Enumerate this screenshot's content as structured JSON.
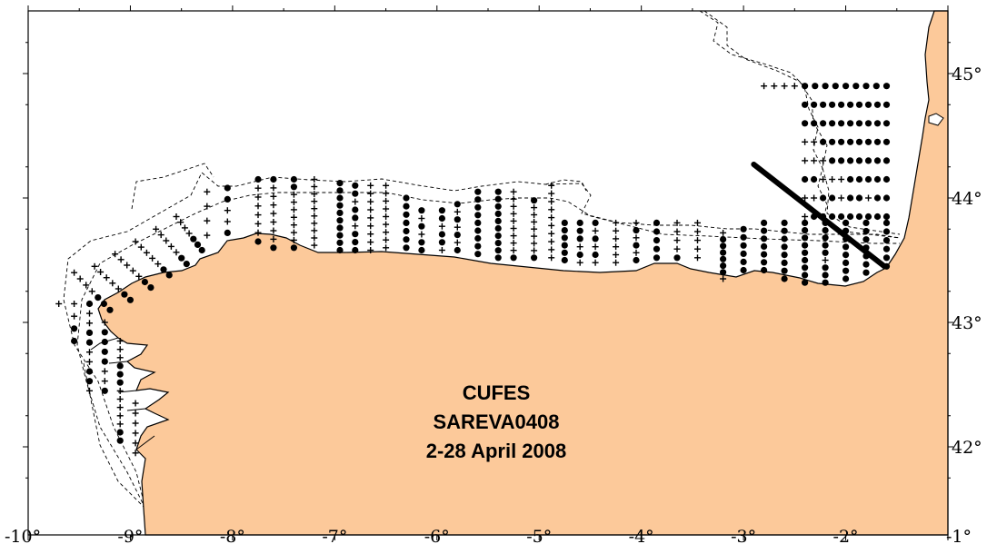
{
  "title": {
    "line1": "CUFES",
    "line2": "SAREVA0408",
    "line3": "2-28 April 2008"
  },
  "x_axis": {
    "ticks": [
      {
        "lon": -10,
        "label": "-10°"
      },
      {
        "lon": -9,
        "label": "-9°"
      },
      {
        "lon": -8,
        "label": "-8°"
      },
      {
        "lon": -7,
        "label": "-7°"
      },
      {
        "lon": -6,
        "label": "-6°"
      },
      {
        "lon": -5,
        "label": "-5°"
      },
      {
        "lon": -4,
        "label": "-4°"
      },
      {
        "lon": -3,
        "label": "-3°"
      },
      {
        "lon": -2,
        "label": "-2°"
      },
      {
        "lon": -1,
        "label": "-1°"
      }
    ]
  },
  "y_axis": {
    "ticks": [
      {
        "lat": 42,
        "label": "42°"
      },
      {
        "lat": 43,
        "label": "43°"
      },
      {
        "lat": 44,
        "label": "44°"
      },
      {
        "lat": 45,
        "label": "45°"
      }
    ]
  },
  "map_extent": {
    "lon": [
      -10,
      -1
    ],
    "lat": [
      41.5,
      45.5
    ]
  },
  "colors": {
    "land": "#fcc99a",
    "sea": "#ffffff",
    "ink": "#000000"
  },
  "symbols": {
    "dot": "sample with eggs (filled circle)",
    "plus": "sample without eggs (cross)"
  },
  "transects": [
    {
      "lon": -9.7,
      "lat_from": 42.7,
      "lat_to": 43.15,
      "pattern": "P"
    },
    {
      "lon": -9.55,
      "lat_from": 42.85,
      "lat_to": 43.15,
      "pattern": "PPDD"
    },
    {
      "lon": -9.4,
      "lat_from": 42.45,
      "lat_to": 43.15,
      "pattern": "DPPDDPPDDP"
    },
    {
      "lon": -9.25,
      "lat_from": 42.45,
      "lat_to": 43.0,
      "pattern": "PDDDDPPD"
    },
    {
      "lon": -9.1,
      "lat_from": 42.05,
      "lat_to": 42.85,
      "pattern": "PPPDDDPPPPPDD"
    },
    {
      "lon": -8.95,
      "lat_from": 41.95,
      "lat_to": 42.35,
      "pattern": "PPPPPP"
    },
    {
      "lon": -8.25,
      "lat_from": 43.7,
      "lat_to": 44.05,
      "pattern": "PPPP"
    },
    {
      "lon": -8.05,
      "lat_from": 43.72,
      "lat_to": 44.08,
      "pattern": "DDPPD"
    },
    {
      "lon": -7.75,
      "lat_from": 43.65,
      "lat_to": 44.15,
      "pattern": "DPPPPPPD"
    },
    {
      "lon": -7.6,
      "lat_from": 43.6,
      "lat_to": 44.15,
      "pattern": "DPPPPPPPD"
    },
    {
      "lon": -7.4,
      "lat_from": 43.6,
      "lat_to": 44.15,
      "pattern": "DDPPPPPPPD"
    },
    {
      "lon": -7.2,
      "lat_from": 43.62,
      "lat_to": 44.15,
      "pattern": "PPPPPPPPPP"
    },
    {
      "lon": -6.95,
      "lat_from": 43.58,
      "lat_to": 44.12,
      "pattern": "DDDDDDDDDD"
    },
    {
      "lon": -6.8,
      "lat_from": 43.58,
      "lat_to": 44.1,
      "pattern": "DDPDDPDDD"
    },
    {
      "lon": -6.65,
      "lat_from": 43.58,
      "lat_to": 44.1,
      "pattern": "PPPPPPPPP"
    },
    {
      "lon": -6.5,
      "lat_from": 43.6,
      "lat_to": 44.1,
      "pattern": "PPPPPPPPP"
    },
    {
      "lon": -6.3,
      "lat_from": 43.6,
      "lat_to": 44.0,
      "pattern": "DDDDDDD"
    },
    {
      "lon": -6.15,
      "lat_from": 43.58,
      "lat_to": 43.9,
      "pattern": "DPDPDD"
    },
    {
      "lon": -5.95,
      "lat_from": 43.58,
      "lat_to": 43.9,
      "pattern": "DDPDDP"
    },
    {
      "lon": -5.8,
      "lat_from": 43.58,
      "lat_to": 43.95,
      "pattern": "DPDPDPD"
    },
    {
      "lon": -5.6,
      "lat_from": 43.55,
      "lat_to": 44.05,
      "pattern": "DDDDDDDDD"
    },
    {
      "lon": -5.4,
      "lat_from": 43.52,
      "lat_to": 44.05,
      "pattern": "DDDDDDDDDD"
    },
    {
      "lon": -5.25,
      "lat_from": 43.52,
      "lat_to": 44.05,
      "pattern": "PPPPPPPPPD"
    },
    {
      "lon": -5.05,
      "lat_from": 43.52,
      "lat_to": 43.98,
      "pattern": "DPPPPPPPD"
    },
    {
      "lon": -4.88,
      "lat_from": 43.52,
      "lat_to": 44.1,
      "pattern": "PPPPPPPPPP"
    },
    {
      "lon": -4.75,
      "lat_from": 43.5,
      "lat_to": 43.8,
      "pattern": "DDDDDD"
    },
    {
      "lon": -4.6,
      "lat_from": 43.48,
      "lat_to": 43.8,
      "pattern": "DDDPDP"
    },
    {
      "lon": -4.45,
      "lat_from": 43.48,
      "lat_to": 43.8,
      "pattern": "DPDPDP"
    },
    {
      "lon": -4.25,
      "lat_from": 43.48,
      "lat_to": 43.8,
      "pattern": "PPPPPP"
    },
    {
      "lon": -4.05,
      "lat_from": 43.5,
      "lat_to": 43.8,
      "pattern": "PDPDPD"
    },
    {
      "lon": -3.85,
      "lat_from": 43.52,
      "lat_to": 43.8,
      "pattern": "DDDDD"
    },
    {
      "lon": -3.65,
      "lat_from": 43.52,
      "lat_to": 43.8,
      "pattern": "PPPPD"
    },
    {
      "lon": -3.45,
      "lat_from": 43.52,
      "lat_to": 43.8,
      "pattern": "PPPPP"
    },
    {
      "lon": -3.2,
      "lat_from": 43.35,
      "lat_to": 43.72,
      "pattern": "PDDDDDDP"
    },
    {
      "lon": -3.0,
      "lat_from": 43.42,
      "lat_to": 43.75,
      "pattern": "DDDDDD"
    },
    {
      "lon": -2.8,
      "lat_from": 43.42,
      "lat_to": 43.8,
      "pattern": "DDDDDDD"
    },
    {
      "lon": -2.6,
      "lat_from": 43.35,
      "lat_to": 43.8,
      "pattern": "DDDDDDDD"
    },
    {
      "lon": -2.4,
      "lat_from": 43.32,
      "lat_to": 43.8,
      "pattern": "DDDDDDDDD"
    },
    {
      "lon": -2.2,
      "lat_from": 43.32,
      "lat_to": 43.8,
      "pattern": "DDDDDPDDD"
    },
    {
      "lon": -2.0,
      "lat_from": 43.35,
      "lat_to": 43.8,
      "pattern": "DDDDDDDD"
    },
    {
      "lon": -1.8,
      "lat_from": 43.4,
      "lat_to": 43.8,
      "pattern": "DDDDDDD"
    },
    {
      "lon": -1.6,
      "lat_from": 43.45,
      "lat_to": 43.8,
      "pattern": "DDDDDD"
    }
  ],
  "diagonal_transects": [
    {
      "lon_from": -9.55,
      "lat_from": 43.4,
      "lon_to": -9.2,
      "lat_to": 43.1,
      "pattern": "PPPPDDD"
    },
    {
      "lon_from": -9.35,
      "lat_from": 43.45,
      "lon_to": -9.0,
      "lat_to": 43.18,
      "pattern": "PPPPPDD"
    },
    {
      "lon_from": -9.15,
      "lat_from": 43.55,
      "lon_to": -8.8,
      "lat_to": 43.28,
      "pattern": "PPPPPDD"
    },
    {
      "lon_from": -8.95,
      "lat_from": 43.65,
      "lon_to": -8.62,
      "lat_to": 43.38,
      "pattern": "PPPPPDD"
    },
    {
      "lon_from": -8.75,
      "lat_from": 43.75,
      "lon_to": -8.45,
      "lat_to": 43.47,
      "pattern": "PPPPPDD"
    },
    {
      "lon_from": -8.55,
      "lat_from": 43.85,
      "lon_to": -8.3,
      "lat_to": 43.58,
      "pattern": "PPPPDDD"
    }
  ],
  "gulf_rows": [
    {
      "lat": 44.9,
      "lon_from": -2.8,
      "lon_to": -1.6,
      "pattern": "PPPPDDDDDDDDD"
    },
    {
      "lat": 44.75,
      "lon_from": -2.4,
      "lon_to": -1.6,
      "pattern": "DDDDDDDDDD"
    },
    {
      "lat": 44.6,
      "lon_from": -2.4,
      "lon_to": -1.6,
      "pattern": "DDDDDDDDDD"
    },
    {
      "lat": 44.45,
      "lon_from": -2.4,
      "lon_to": -1.6,
      "pattern": "PPDDDDDDDD"
    },
    {
      "lat": 44.3,
      "lon_from": -2.4,
      "lon_to": -1.6,
      "pattern": "PPPDDDDDDD"
    },
    {
      "lat": 44.15,
      "lon_from": -2.4,
      "lon_to": -1.6,
      "pattern": "DDPPPDDDDD"
    },
    {
      "lat": 44.0,
      "lon_from": -2.4,
      "lon_to": -1.6,
      "pattern": "PPDDPDDPDD"
    },
    {
      "lat": 43.85,
      "lon_from": -2.4,
      "lon_to": -1.6,
      "pattern": "PDDDDDDDDD"
    }
  ],
  "bold_track": {
    "lon_from": -2.9,
    "lat_from": 44.27,
    "lon_to": -1.62,
    "lat_to": 43.45
  }
}
